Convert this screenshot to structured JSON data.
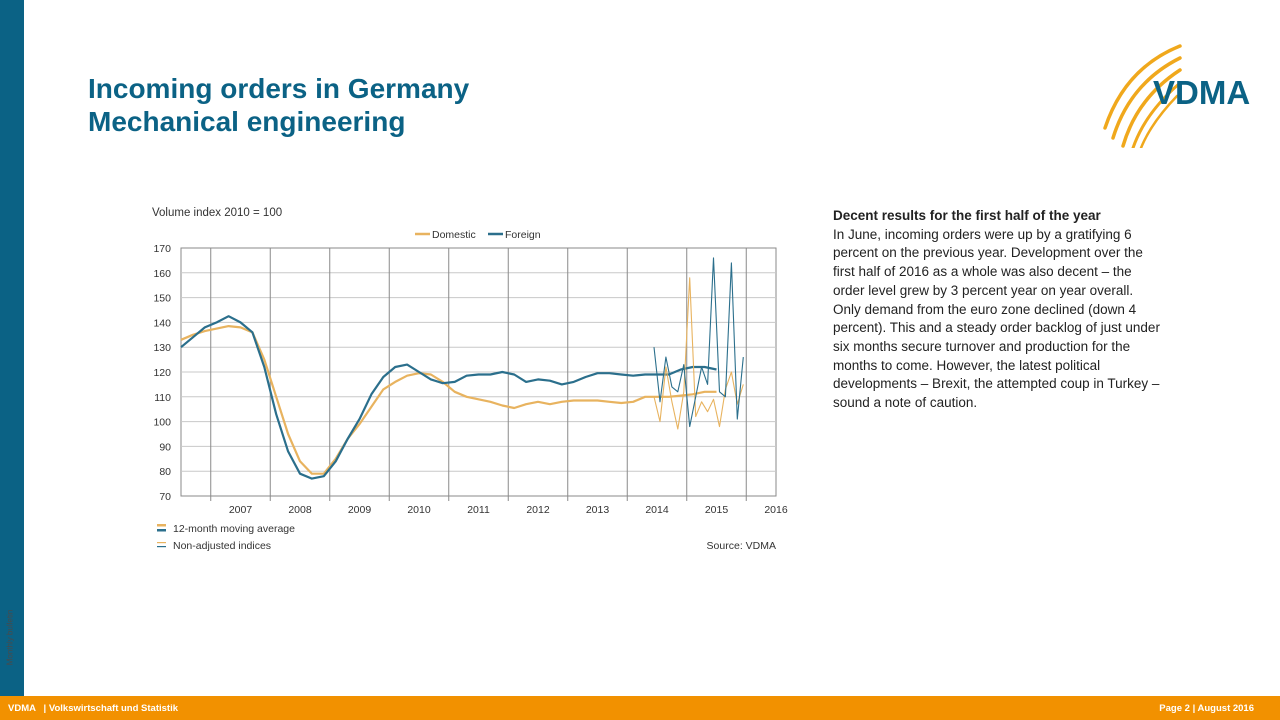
{
  "page": {
    "title_line1": "Incoming orders in Germany",
    "title_line2": "Mechanical engineering",
    "side_label": "Monthly bulletin",
    "logo_text": "VDMA"
  },
  "commentary": {
    "heading": "Decent results for the first half of the year",
    "body": "In June, incoming orders were up by a gratifying 6 percent on the previous year. Development over the first half of 2016 as a whole was also decent – the order level grew by 3 percent year on year overall. Only demand from the euro zone declined (down 4 percent). This and a steady order backlog of just under six months secure turnover and production for the months to come. However, the latest political developments – Brexit, the attempted coup in Turkey – sound a note of caution."
  },
  "footer": {
    "brand": "VDMA",
    "department": "| Volkswirtschaft und Statistik",
    "page": "Page 2 | August 2016"
  },
  "colors": {
    "domestic": "#e8b35f",
    "foreign": "#2b6f8c",
    "accent": "#0b6285",
    "orange": "#f29100"
  },
  "chart_data": {
    "type": "line",
    "ylabel": "Volume index 2010 = 100",
    "ylim": [
      70,
      170
    ],
    "yticks": [
      70,
      80,
      90,
      100,
      110,
      120,
      130,
      140,
      150,
      160,
      170
    ],
    "xlim": [
      2006.5,
      2016.5
    ],
    "xtick_labels": [
      "2007",
      "2008",
      "2009",
      "2010",
      "2011",
      "2012",
      "2013",
      "2014",
      "2015",
      "2016"
    ],
    "grid": true,
    "legend": [
      {
        "name": "Domestic",
        "color": "#e8b35f"
      },
      {
        "name": "Foreign",
        "color": "#2b6f8c"
      }
    ],
    "legend_placement": "top",
    "notes": [
      "12-month moving average",
      "Non-adjusted indices"
    ],
    "source": "Source: VDMA",
    "series": [
      {
        "name": "Domestic",
        "style": "12-month moving average",
        "x": [
          2006.5,
          2006.7,
          2006.9,
          2007.1,
          2007.3,
          2007.5,
          2007.7,
          2007.9,
          2008.1,
          2008.3,
          2008.5,
          2008.7,
          2008.9,
          2009.1,
          2009.3,
          2009.5,
          2009.7,
          2009.9,
          2010.1,
          2010.3,
          2010.5,
          2010.7,
          2010.9,
          2011.1,
          2011.3,
          2011.5,
          2011.7,
          2011.9,
          2012.1,
          2012.3,
          2012.5,
          2012.7,
          2012.9,
          2013.1,
          2013.3,
          2013.5,
          2013.7,
          2013.9,
          2014.1,
          2014.3,
          2014.5,
          2014.7,
          2014.9,
          2015.1,
          2015.3,
          2015.5
        ],
        "y": [
          133,
          135,
          136.5,
          137.5,
          138.5,
          138,
          136,
          125,
          110,
          95,
          84,
          79,
          79,
          85,
          93,
          99,
          106,
          113,
          116,
          118.5,
          119.5,
          119,
          116,
          112,
          110,
          109,
          108,
          106.5,
          105.5,
          107,
          108,
          107,
          108,
          108.5,
          108.5,
          108.5,
          108,
          107.5,
          108,
          110,
          110,
          110,
          110.5,
          111,
          112,
          112
        ]
      },
      {
        "name": "Foreign",
        "style": "12-month moving average",
        "x": [
          2006.5,
          2006.7,
          2006.9,
          2007.1,
          2007.3,
          2007.5,
          2007.7,
          2007.9,
          2008.1,
          2008.3,
          2008.5,
          2008.7,
          2008.9,
          2009.1,
          2009.3,
          2009.5,
          2009.7,
          2009.9,
          2010.1,
          2010.3,
          2010.5,
          2010.7,
          2010.9,
          2011.1,
          2011.3,
          2011.5,
          2011.7,
          2011.9,
          2012.1,
          2012.3,
          2012.5,
          2012.7,
          2012.9,
          2013.1,
          2013.3,
          2013.5,
          2013.7,
          2013.9,
          2014.1,
          2014.3,
          2014.5,
          2014.7,
          2014.9,
          2015.1,
          2015.3,
          2015.5
        ],
        "y": [
          130,
          134,
          138,
          140,
          142.5,
          140,
          136,
          122,
          103,
          88,
          79,
          77,
          78,
          84,
          93,
          101,
          111,
          118,
          122,
          123,
          120,
          117,
          115.5,
          116,
          118.5,
          119,
          119,
          120,
          119,
          116,
          117,
          116.5,
          115,
          116,
          118,
          119.5,
          119.5,
          119,
          118.5,
          119,
          119,
          119,
          121,
          122,
          122,
          121
        ]
      },
      {
        "name": "Domestic",
        "style": "Non-adjusted indices",
        "x": [
          2014.45,
          2014.55,
          2014.65,
          2014.75,
          2014.85,
          2014.95,
          2015.05,
          2015.15,
          2015.25,
          2015.35,
          2015.45,
          2015.55,
          2015.65,
          2015.75,
          2015.85,
          2015.95
        ],
        "y": [
          110,
          100,
          122,
          108,
          97,
          112,
          158,
          102,
          108,
          104,
          109,
          98,
          113,
          120,
          107,
          115
        ]
      },
      {
        "name": "Foreign",
        "style": "Non-adjusted indices",
        "x": [
          2014.45,
          2014.55,
          2014.65,
          2014.75,
          2014.85,
          2014.95,
          2015.05,
          2015.15,
          2015.25,
          2015.35,
          2015.45,
          2015.55,
          2015.65,
          2015.75,
          2015.85,
          2015.95
        ],
        "y": [
          130,
          108,
          126,
          114,
          112,
          123,
          98,
          110,
          122,
          115,
          166,
          112,
          110,
          164,
          101,
          126
        ]
      }
    ]
  }
}
